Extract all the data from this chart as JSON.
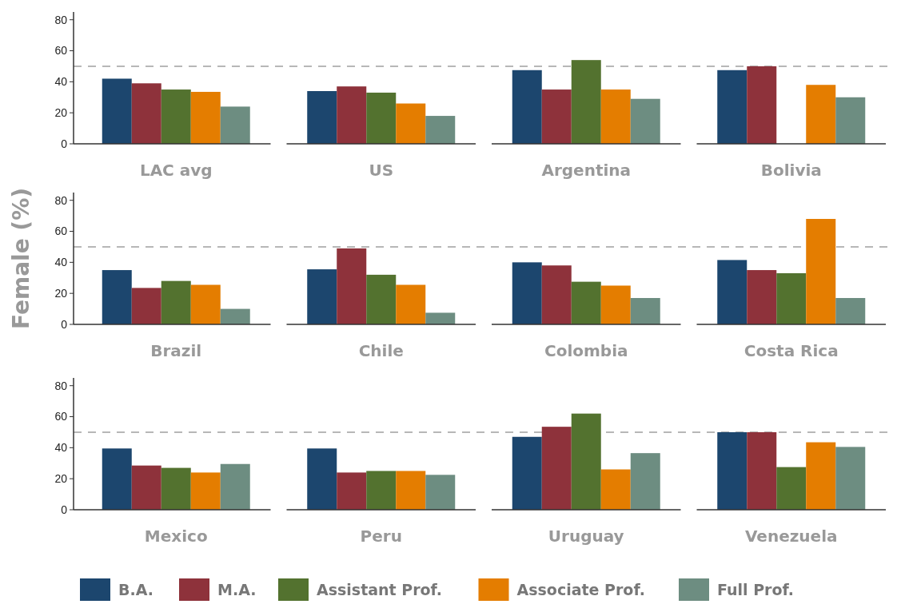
{
  "chart_data": [
    {
      "type": "bar",
      "categories": [
        "LAC avg",
        "US",
        "Argentina",
        "Bolivia"
      ],
      "ylim": [
        0,
        85
      ],
      "yticks": [
        0,
        20,
        40,
        60,
        80
      ],
      "ref_lines": [
        {
          "axis": "y",
          "value": 50,
          "color": "#a0a0a0",
          "line_style": "dashed"
        }
      ],
      "series": [
        {
          "color": "#1c466e",
          "values": [
            42,
            34,
            47.5,
            47.5
          ]
        },
        {
          "color": "#8e323b",
          "values": [
            39,
            37,
            35,
            50
          ]
        },
        {
          "color": "#53722f",
          "values": [
            35,
            33,
            54,
            null
          ]
        },
        {
          "color": "#e47d00",
          "values": [
            33.5,
            26,
            35,
            38
          ]
        },
        {
          "color": "#6d8d81",
          "values": [
            24,
            18,
            29,
            30
          ]
        }
      ]
    },
    {
      "type": "bar",
      "ylabel": "Female (%)",
      "categories": [
        "Brazil",
        "Chile",
        "Colombia",
        "Costa Rica"
      ],
      "ylim": [
        0,
        85
      ],
      "yticks": [
        0,
        20,
        40,
        60,
        80
      ],
      "ref_lines": [
        {
          "axis": "y",
          "value": 50,
          "color": "#a0a0a0",
          "line_style": "dashed"
        }
      ],
      "series": [
        {
          "color": "#1c466e",
          "values": [
            35,
            35.5,
            40,
            41.5
          ]
        },
        {
          "color": "#8e323b",
          "values": [
            23.5,
            49,
            38,
            35
          ]
        },
        {
          "color": "#53722f",
          "values": [
            28,
            32,
            27.5,
            33
          ]
        },
        {
          "color": "#e47d00",
          "values": [
            25.5,
            25.5,
            25,
            68
          ]
        },
        {
          "color": "#6d8d81",
          "values": [
            10,
            7.5,
            17,
            17
          ]
        }
      ]
    },
    {
      "type": "bar",
      "categories": [
        "Mexico",
        "Peru",
        "Uruguay",
        "Venezuela"
      ],
      "ylim": [
        0,
        85
      ],
      "yticks": [
        0,
        20,
        40,
        60,
        80
      ],
      "legend": "bottom",
      "ref_lines": [
        {
          "axis": "y",
          "value": 50,
          "color": "#a0a0a0",
          "line_style": "dashed"
        }
      ],
      "series": [
        {
          "name": "B.A.",
          "color": "#1c466e",
          "values": [
            39.5,
            39.5,
            47,
            50
          ]
        },
        {
          "name": "M.A.",
          "color": "#8e323b",
          "values": [
            28.5,
            24,
            53.5,
            50
          ]
        },
        {
          "name": "Assistant Prof.",
          "color": "#53722f",
          "values": [
            27,
            25,
            62,
            27.5
          ]
        },
        {
          "name": "Associate Prof.",
          "color": "#e47d00",
          "values": [
            24,
            25,
            26,
            43.5
          ]
        },
        {
          "name": "Full Prof.",
          "color": "#6d8d81",
          "values": [
            29.5,
            22.5,
            36.5,
            40.5
          ]
        }
      ]
    }
  ]
}
